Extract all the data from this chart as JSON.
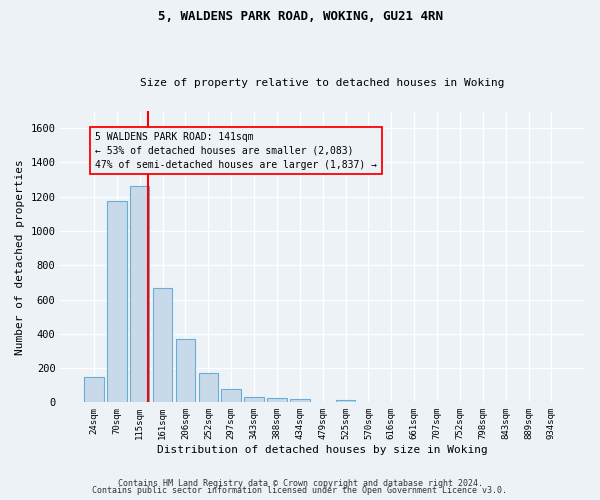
{
  "title1": "5, WALDENS PARK ROAD, WOKING, GU21 4RN",
  "title2": "Size of property relative to detached houses in Woking",
  "xlabel": "Distribution of detached houses by size in Woking",
  "ylabel": "Number of detached properties",
  "categories": [
    "24sqm",
    "70sqm",
    "115sqm",
    "161sqm",
    "206sqm",
    "252sqm",
    "297sqm",
    "343sqm",
    "388sqm",
    "434sqm",
    "479sqm",
    "525sqm",
    "570sqm",
    "616sqm",
    "661sqm",
    "707sqm",
    "752sqm",
    "798sqm",
    "843sqm",
    "889sqm",
    "934sqm"
  ],
  "values": [
    150,
    1175,
    1260,
    670,
    370,
    170,
    80,
    30,
    25,
    20,
    0,
    15,
    0,
    0,
    0,
    0,
    0,
    0,
    0,
    0,
    0
  ],
  "bar_color": "#c8daea",
  "bar_edge_color": "#6aaed6",
  "ylim": [
    0,
    1700
  ],
  "yticks": [
    0,
    200,
    400,
    600,
    800,
    1000,
    1200,
    1400,
    1600
  ],
  "annotation_line1": "5 WALDENS PARK ROAD: 141sqm",
  "annotation_line2": "← 53% of detached houses are smaller (2,083)",
  "annotation_line3": "47% of semi-detached houses are larger (1,837) →",
  "red_line_x": 2.37,
  "footnote1": "Contains HM Land Registry data © Crown copyright and database right 2024.",
  "footnote2": "Contains public sector information licensed under the Open Government Licence v3.0.",
  "background_color": "#edf2f7",
  "grid_color": "#ffffff"
}
